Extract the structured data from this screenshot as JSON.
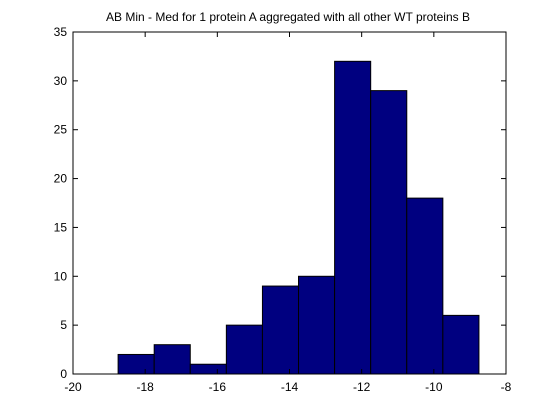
{
  "chart_data": {
    "type": "bar",
    "title": "AB Min - Med for 1 protein A aggregated with all other WT proteins B",
    "xlabel": "",
    "ylabel": "",
    "xlim": [
      -20,
      -8
    ],
    "ylim": [
      0,
      35
    ],
    "x_ticks": [
      -20,
      -18,
      -16,
      -14,
      -12,
      -10,
      -8
    ],
    "y_ticks": [
      0,
      5,
      10,
      15,
      20,
      25,
      30,
      35
    ],
    "x_tick_labels": [
      "-20",
      "-18",
      "-16",
      "-14",
      "-12",
      "-10",
      "-8"
    ],
    "y_tick_labels": [
      "0",
      "5",
      "10",
      "15",
      "20",
      "25",
      "30",
      "35"
    ],
    "bins": [
      {
        "x0": -18.75,
        "x1": -17.75,
        "value": 2
      },
      {
        "x0": -17.75,
        "x1": -16.75,
        "value": 3
      },
      {
        "x0": -16.75,
        "x1": -15.75,
        "value": 1
      },
      {
        "x0": -15.75,
        "x1": -14.75,
        "value": 5
      },
      {
        "x0": -14.75,
        "x1": -13.75,
        "value": 9
      },
      {
        "x0": -13.75,
        "x1": -12.75,
        "value": 10
      },
      {
        "x0": -12.75,
        "x1": -11.75,
        "value": 32
      },
      {
        "x0": -11.75,
        "x1": -10.75,
        "value": 29
      },
      {
        "x0": -10.75,
        "x1": -9.75,
        "value": 18
      },
      {
        "x0": -9.75,
        "x1": -8.75,
        "value": 6
      }
    ],
    "grid": false,
    "legend": "none",
    "colors": {
      "bar_fill": "#000080",
      "bar_edge": "#000000",
      "axis": "#000000",
      "background": "#ffffff"
    }
  }
}
